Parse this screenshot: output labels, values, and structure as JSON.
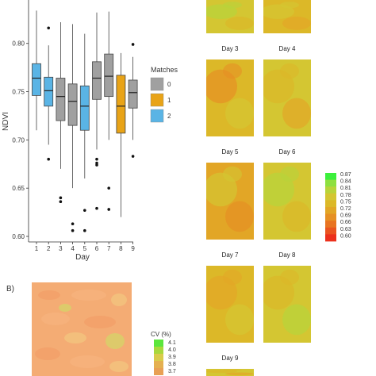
{
  "chart_data": [
    {
      "type": "box",
      "title": "",
      "xlabel": "Day",
      "ylabel": "NDVI",
      "ylim": [
        0.6,
        0.845
      ],
      "yticks": [
        "0.60",
        "0.65",
        "0.70",
        "0.75",
        "0.80"
      ],
      "categories": [
        "1",
        "2",
        "3",
        "4",
        "5",
        "6",
        "7",
        "8",
        "9"
      ],
      "legend": {
        "title": "Matches",
        "placement": "right",
        "entries": [
          {
            "label": "0",
            "color": "#a0a0a0"
          },
          {
            "label": "1",
            "color": "#e8a317"
          },
          {
            "label": "2",
            "color": "#5ab4e5"
          }
        ]
      },
      "boxes": [
        {
          "day": "1",
          "group": "2",
          "whisker_low": 0.71,
          "q1": 0.746,
          "median": 0.764,
          "q3": 0.779,
          "whisker_high": 0.834,
          "outliers": []
        },
        {
          "day": "2",
          "group": "2",
          "whisker_low": 0.695,
          "q1": 0.735,
          "median": 0.751,
          "q3": 0.765,
          "whisker_high": 0.798,
          "outliers": [
            0.816,
            0.68
          ]
        },
        {
          "day": "3",
          "group": "0",
          "whisker_low": 0.67,
          "q1": 0.72,
          "median": 0.745,
          "q3": 0.764,
          "whisker_high": 0.822,
          "outliers": [
            0.64,
            0.636
          ]
        },
        {
          "day": "4",
          "group": "0",
          "whisker_low": 0.65,
          "q1": 0.715,
          "median": 0.74,
          "q3": 0.758,
          "whisker_high": 0.82,
          "outliers": [
            0.613,
            0.606
          ]
        },
        {
          "day": "5",
          "group": "2",
          "whisker_low": 0.66,
          "q1": 0.71,
          "median": 0.735,
          "q3": 0.756,
          "whisker_high": 0.81,
          "outliers": [
            0.627,
            0.606
          ]
        },
        {
          "day": "6",
          "group": "0",
          "whisker_low": 0.69,
          "q1": 0.742,
          "median": 0.764,
          "q3": 0.781,
          "whisker_high": 0.832,
          "outliers": [
            0.68,
            0.676,
            0.674,
            0.629
          ]
        },
        {
          "day": "7",
          "group": "0",
          "whisker_low": 0.7,
          "q1": 0.745,
          "median": 0.766,
          "q3": 0.789,
          "whisker_high": 0.833,
          "outliers": [
            0.65,
            0.628
          ]
        },
        {
          "day": "8",
          "group": "1",
          "whisker_low": 0.62,
          "q1": 0.707,
          "median": 0.735,
          "q3": 0.767,
          "whisker_high": 0.79,
          "outliers": []
        },
        {
          "day": "9",
          "group": "0",
          "whisker_low": 0.7,
          "q1": 0.733,
          "median": 0.749,
          "q3": 0.762,
          "whisker_high": 0.786,
          "outliers": [
            0.799,
            0.683
          ]
        }
      ]
    },
    {
      "type": "heatmap",
      "panel_label": "B)",
      "colorbar_title": "CV (%)",
      "colorbar_ticks": [
        "4.1",
        "4.0",
        "3.9",
        "3.8",
        "3.7"
      ],
      "colors": [
        "#f2a06a",
        "#f6b27c",
        "#f2c27e",
        "#d8cf6a"
      ]
    },
    {
      "type": "heatmap",
      "panels": [
        "Day 3",
        "Day 4",
        "Day 5",
        "Day 6",
        "Day 7",
        "Day 8",
        "Day 9"
      ],
      "colorbar_ticks": [
        "0.87",
        "0.84",
        "0.81",
        "0.78",
        "0.75",
        "0.72",
        "0.69",
        "0.66",
        "0.63",
        "0.60"
      ],
      "colorbar_colors": [
        "#3cf03c",
        "#8ee040",
        "#b8d43a",
        "#d4c632",
        "#dcb828",
        "#e2a626",
        "#e69024",
        "#e87422",
        "#ea5420",
        "#ec301c"
      ]
    }
  ]
}
